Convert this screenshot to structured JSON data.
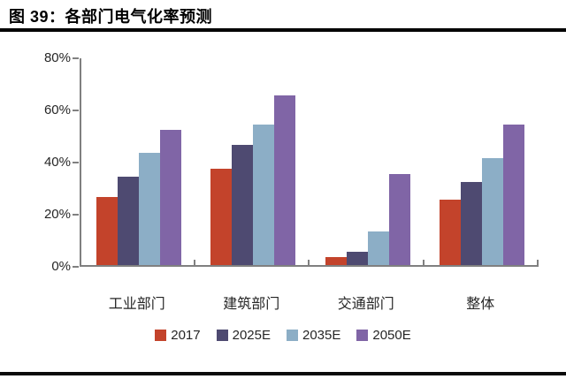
{
  "figure": {
    "title": "图 39：各部门电气化率预测"
  },
  "chart_data": {
    "type": "bar",
    "title": "各部门电气化率预测",
    "categories": [
      "工业部门",
      "建筑部门",
      "交通部门",
      "整体"
    ],
    "series": [
      {
        "name": "2017",
        "color": "#C3432B",
        "values": [
          26,
          37,
          3,
          25
        ]
      },
      {
        "name": "2025E",
        "color": "#4E4A71",
        "values": [
          34,
          46,
          5,
          32
        ]
      },
      {
        "name": "2035E",
        "color": "#8CAEC6",
        "values": [
          43,
          54,
          13,
          41
        ]
      },
      {
        "name": "2050E",
        "color": "#8065A6",
        "values": [
          52,
          65,
          35,
          54
        ]
      }
    ],
    "xlabel": "",
    "ylabel": "",
    "ylim": [
      0,
      80
    ],
    "y_ticks": [
      {
        "value": 0,
        "label": "0%"
      },
      {
        "value": 20,
        "label": "20%"
      },
      {
        "value": 40,
        "label": "40%"
      },
      {
        "value": 60,
        "label": "60%"
      },
      {
        "value": 80,
        "label": "80%"
      }
    ],
    "grid": false,
    "legend_position": "bottom",
    "colors": {
      "axis": "#808080",
      "tick_text": "#262626",
      "rule": "#000000"
    }
  }
}
